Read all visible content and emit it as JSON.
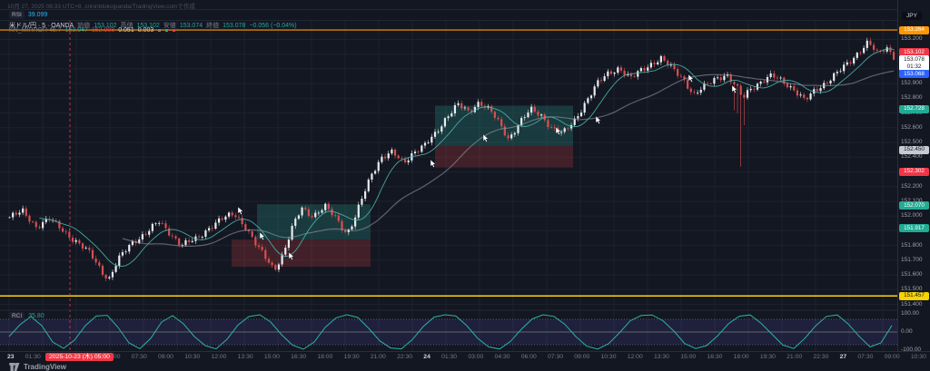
{
  "watermark": "10月 27, 2025 08:33 UTC+8, crinintdokojpanda/TradingView.comで作成",
  "panes": {
    "rsi_top": {
      "label": "RSI",
      "value": "39.099"
    },
    "osc": {
      "label": "RCI",
      "value": "35.80",
      "axis": [
        "100.00",
        "0.00",
        "-100.00"
      ]
    }
  },
  "legend": {
    "main": {
      "title": "米ドル/円 · 5 · OANDA",
      "o_label": "始値",
      "o": "153.102",
      "h_label": "高値",
      "h": "153.102",
      "l_label": "安値",
      "l": "153.074",
      "c_label": "終値",
      "c": "153.078",
      "change": "−0.056 (−0.04%)"
    },
    "indicator": {
      "name": "KN_MIRROR 45.7",
      "v1": "153.047",
      "v2": "152.908",
      "v3": "0.051",
      "v4": "0.003"
    }
  },
  "price_axis": {
    "unit": "JPY",
    "ticks": [
      153.2,
      153.1,
      153.0,
      152.9,
      152.8,
      152.7,
      152.6,
      152.5,
      152.4,
      152.3,
      152.2,
      152.1,
      152.0,
      151.9,
      151.8,
      151.7,
      151.6,
      151.5,
      151.4
    ],
    "badges": [
      {
        "text": "153.264",
        "style": "orange",
        "price": 153.264
      },
      {
        "text": "153.102",
        "style": "red",
        "top": 53
      },
      {
        "text": "153.078",
        "sub": "01:32",
        "style": "white",
        "top": 61
      },
      {
        "text": "153.068",
        "style": "blue",
        "top": 77
      },
      {
        "text": "152.728",
        "style": "teal",
        "price": 152.728
      },
      {
        "text": "152.450",
        "style": "gray",
        "price": 152.45
      },
      {
        "text": "152.302",
        "style": "red",
        "price": 152.302
      },
      {
        "text": "152.070",
        "style": "teal",
        "price": 152.07
      },
      {
        "text": "151.917",
        "style": "teal",
        "price": 151.917
      },
      {
        "text": "151.457",
        "style": "yellow",
        "price": 151.457
      }
    ]
  },
  "time_axis": {
    "date_badge": "2025-10-23 (木) 05:00",
    "labels": [
      {
        "t": "23",
        "d": true
      },
      {
        "t": "01:30"
      },
      {
        "t": "03:00"
      },
      {
        "t": "04:30"
      },
      {
        "t": "06:00"
      },
      {
        "t": "07:30"
      },
      {
        "t": "09:00"
      },
      {
        "t": "10:30"
      },
      {
        "t": "12:00"
      },
      {
        "t": "13:30"
      },
      {
        "t": "15:00"
      },
      {
        "t": "16:30"
      },
      {
        "t": "18:00"
      },
      {
        "t": "19:30"
      },
      {
        "t": "21:00"
      },
      {
        "t": "22:30"
      },
      {
        "t": "24",
        "d": true
      },
      {
        "t": "01:30"
      },
      {
        "t": "03:00"
      },
      {
        "t": "04:30"
      },
      {
        "t": "06:00"
      },
      {
        "t": "07:30"
      },
      {
        "t": "09:00"
      },
      {
        "t": "10:30"
      },
      {
        "t": "12:00"
      },
      {
        "t": "13:30"
      },
      {
        "t": "15:00"
      },
      {
        "t": "16:30"
      },
      {
        "t": "18:00"
      },
      {
        "t": "19:30"
      },
      {
        "t": "21:00"
      },
      {
        "t": "22:30"
      },
      {
        "t": "27",
        "d": true
      },
      {
        "t": "07:30"
      },
      {
        "t": "09:00"
      },
      {
        "t": "10:30"
      }
    ]
  },
  "footer": {
    "brand": "TradingView"
  },
  "colors": {
    "bg": "#131722",
    "grid": "#1e222d",
    "up": "#e9ecef",
    "down": "#d65050",
    "zone_teal": "rgba(42,165,149,0.25)",
    "zone_red": "rgba(230,70,70,0.22)",
    "orange_line": "#ff9800",
    "yellow_line": "#ffd60a",
    "osc_line": "#2bb3a3",
    "osc_band": "rgba(103,93,210,0.14)",
    "ma_fast": "#4db6ac",
    "ma_slow": "#9aa0aa",
    "accent_red": "#f23645",
    "accent_blue": "#2962ff",
    "accent_teal": "#22ab94"
  },
  "chart_data": {
    "type": "candlestick",
    "symbol": "米ドル/円 (USD/JPY)",
    "interval": "5分",
    "exchange": "OANDA",
    "price_range_top": 153.32,
    "price_range_bottom": 151.36,
    "price_anchors": [
      [
        10,
        151.99
      ],
      [
        25,
        152.03
      ],
      [
        40,
        151.93
      ],
      [
        55,
        151.98
      ],
      [
        70,
        151.9
      ],
      [
        85,
        151.82
      ],
      [
        100,
        151.74
      ],
      [
        113,
        151.62
      ],
      [
        120,
        151.57
      ],
      [
        130,
        151.7
      ],
      [
        145,
        151.82
      ],
      [
        160,
        151.88
      ],
      [
        175,
        151.96
      ],
      [
        185,
        151.9
      ],
      [
        200,
        151.8
      ],
      [
        215,
        151.84
      ],
      [
        230,
        151.92
      ],
      [
        245,
        151.98
      ],
      [
        258,
        152.02
      ],
      [
        270,
        151.93
      ],
      [
        282,
        151.8
      ],
      [
        295,
        151.7
      ],
      [
        302,
        151.64
      ],
      [
        312,
        151.74
      ],
      [
        322,
        151.92
      ],
      [
        332,
        152.06
      ],
      [
        345,
        152.0
      ],
      [
        358,
        152.06
      ],
      [
        370,
        151.99
      ],
      [
        382,
        151.88
      ],
      [
        390,
        151.97
      ],
      [
        400,
        152.14
      ],
      [
        410,
        152.3
      ],
      [
        420,
        152.4
      ],
      [
        432,
        152.43
      ],
      [
        444,
        152.36
      ],
      [
        456,
        152.44
      ],
      [
        468,
        152.48
      ],
      [
        480,
        152.56
      ],
      [
        492,
        152.68
      ],
      [
        504,
        152.76
      ],
      [
        516,
        152.7
      ],
      [
        528,
        152.78
      ],
      [
        540,
        152.72
      ],
      [
        552,
        152.6
      ],
      [
        560,
        152.52
      ],
      [
        572,
        152.64
      ],
      [
        584,
        152.72
      ],
      [
        596,
        152.68
      ],
      [
        608,
        152.6
      ],
      [
        620,
        152.56
      ],
      [
        632,
        152.64
      ],
      [
        645,
        152.78
      ],
      [
        658,
        152.9
      ],
      [
        670,
        152.97
      ],
      [
        682,
        153.01
      ],
      [
        694,
        152.93
      ],
      [
        706,
        152.99
      ],
      [
        718,
        153.04
      ],
      [
        728,
        153.07
      ],
      [
        740,
        153.0
      ],
      [
        752,
        152.94
      ],
      [
        764,
        152.82
      ],
      [
        776,
        152.88
      ],
      [
        788,
        152.94
      ],
      [
        800,
        152.96
      ],
      [
        812,
        152.86
      ],
      [
        818,
        152.8
      ],
      [
        826,
        152.87
      ],
      [
        838,
        152.91
      ],
      [
        850,
        152.95
      ],
      [
        862,
        152.92
      ],
      [
        874,
        152.86
      ],
      [
        886,
        152.78
      ],
      [
        898,
        152.86
      ],
      [
        910,
        152.91
      ],
      [
        922,
        152.97
      ],
      [
        934,
        153.04
      ],
      [
        946,
        153.12
      ],
      [
        956,
        153.18
      ],
      [
        966,
        153.1
      ],
      [
        976,
        153.15
      ],
      [
        985,
        153.08
      ]
    ],
    "spikes": [
      {
        "x": 815,
        "depth": 0.48
      }
    ],
    "zones": [
      {
        "x1": 283,
        "x2": 408,
        "p1": 152.08,
        "p2": 151.84,
        "kind": "teal"
      },
      {
        "x1": 255,
        "x2": 408,
        "p1": 151.84,
        "p2": 151.655,
        "kind": "red"
      },
      {
        "x1": 479,
        "x2": 631,
        "p1": 152.75,
        "p2": 152.475,
        "kind": "teal"
      },
      {
        "x1": 479,
        "x2": 631,
        "p1": 152.475,
        "p2": 152.33,
        "kind": "red"
      }
    ],
    "hlines": [
      {
        "price": 153.264,
        "kind": "orange"
      },
      {
        "price": 151.457,
        "kind": "yellow"
      }
    ],
    "vline_dashed_x": 77,
    "markers": [
      [
        262,
        228
      ],
      [
        286,
        256
      ],
      [
        318,
        278
      ],
      [
        474,
        176
      ],
      [
        532,
        148
      ],
      [
        612,
        140
      ],
      [
        656,
        128
      ],
      [
        758,
        82
      ],
      [
        806,
        94
      ]
    ],
    "oscillator": {
      "x0": 10,
      "dx": 12,
      "ylim": [
        -100,
        100
      ],
      "band": [
        -70,
        70
      ],
      "last": 35.8,
      "values": [
        -25,
        40,
        85,
        35,
        -55,
        -90,
        -45,
        35,
        88,
        92,
        25,
        -60,
        -92,
        -35,
        55,
        90,
        45,
        -25,
        -75,
        -93,
        -40,
        38,
        85,
        95,
        55,
        -15,
        -72,
        -95,
        -55,
        25,
        78,
        95,
        80,
        20,
        -48,
        -88,
        -93,
        -42,
        30,
        82,
        95,
        88,
        35,
        -35,
        -82,
        -94,
        -52,
        15,
        72,
        95,
        86,
        42,
        -25,
        -78,
        -94,
        -65,
        -5,
        62,
        91,
        94,
        62,
        5,
        -64,
        -91,
        -75,
        -22,
        45,
        87,
        94,
        48,
        -12,
        -72,
        -91,
        -36,
        34,
        86,
        94,
        44,
        -24,
        -82,
        -60,
        36
      ]
    }
  }
}
